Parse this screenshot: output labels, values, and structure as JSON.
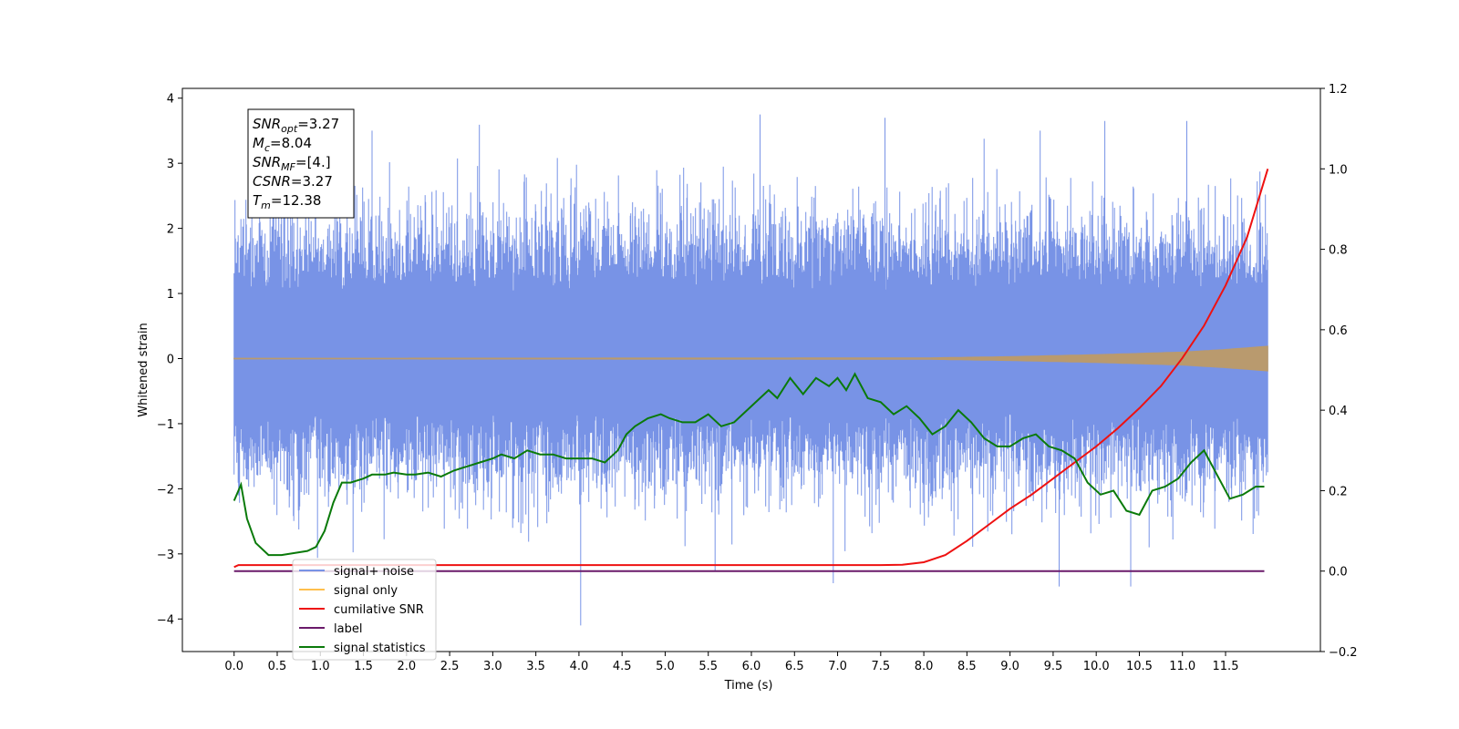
{
  "chart_data": {
    "type": "line",
    "xlabel": "Time (s)",
    "ylabel": "Whitened strain",
    "ylabel_right": "",
    "xlim": [
      -0.6,
      12.6
    ],
    "ylim": [
      -4.5,
      4.15
    ],
    "ylim_right": [
      -0.2,
      1.2
    ],
    "x_ticks": [
      0.0,
      0.5,
      1.0,
      1.5,
      2.0,
      2.5,
      3.0,
      3.5,
      4.0,
      4.5,
      5.0,
      5.5,
      6.0,
      6.5,
      7.0,
      7.5,
      8.0,
      8.5,
      9.0,
      9.5,
      10.0,
      10.5,
      11.0,
      11.5
    ],
    "x_tick_labels": [
      "0.0",
      "0.5",
      "1.0",
      "1.5",
      "2.0",
      "2.5",
      "3.0",
      "3.5",
      "4.0",
      "4.5",
      "5.0",
      "5.5",
      "6.0",
      "6.5",
      "7.0",
      "7.5",
      "8.0",
      "8.5",
      "9.0",
      "9.5",
      "10.0",
      "10.5",
      "11.0",
      "11.5"
    ],
    "y_ticks": [
      -4,
      -3,
      -2,
      -1,
      0,
      1,
      2,
      3,
      4
    ],
    "y_tick_labels": [
      "−4",
      "−3",
      "−2",
      "−1",
      "0",
      "1",
      "2",
      "3",
      "4"
    ],
    "y_ticks_right": [
      -0.2,
      0.0,
      0.2,
      0.4,
      0.6,
      0.8,
      1.0,
      1.2
    ],
    "y_tick_labels_right": [
      "−0.2",
      "0.0",
      "0.2",
      "0.4",
      "0.6",
      "0.8",
      "1.0",
      "1.2"
    ],
    "grid": false,
    "legend_position": "lower-left",
    "annotation": {
      "lines": [
        {
          "base": "SNR",
          "sub": "opt",
          "value": "=3.27"
        },
        {
          "base": "M",
          "sub": "c",
          "value": "=8.04"
        },
        {
          "base": "SNR",
          "sub": "MF",
          "value": "=[4.]"
        },
        {
          "base": "CSNR",
          "sub": "",
          "value": "=3.27"
        },
        {
          "base": "T",
          "sub": "m",
          "value": "=12.38"
        }
      ]
    },
    "series": [
      {
        "name": "signal+ noise",
        "axis": "left",
        "color": "#7893e6",
        "kind": "noise_band",
        "x_range": [
          0.0,
          11.99
        ],
        "typical_upper": 1.8,
        "typical_lower": -1.6,
        "extreme_max": 3.75,
        "extreme_min": -4.1,
        "spikes": [
          {
            "x": 1.6,
            "y": 3.5
          },
          {
            "x": 6.1,
            "y": 3.75
          },
          {
            "x": 7.55,
            "y": 3.7
          },
          {
            "x": 9.35,
            "y": 3.5
          },
          {
            "x": 10.1,
            "y": 3.65
          },
          {
            "x": 11.05,
            "y": 3.65
          },
          {
            "x": 4.02,
            "y": -4.1
          },
          {
            "x": 9.57,
            "y": -3.5
          },
          {
            "x": 10.4,
            "y": -3.5
          },
          {
            "x": 6.95,
            "y": -3.45
          }
        ]
      },
      {
        "name": "signal only",
        "axis": "left",
        "color": "#ffbf4d",
        "kind": "chirp_envelope",
        "x": [
          0.0,
          8.0,
          9.0,
          10.0,
          10.5,
          11.0,
          11.5,
          11.99
        ],
        "amplitude": [
          0.005,
          0.01,
          0.03,
          0.06,
          0.08,
          0.1,
          0.14,
          0.19
        ]
      },
      {
        "name": "cumilative SNR",
        "axis": "right",
        "color": "#ee1111",
        "x": [
          0.0,
          0.05,
          7.5,
          7.75,
          8.0,
          8.25,
          8.5,
          8.75,
          9.0,
          9.25,
          9.5,
          9.75,
          10.0,
          10.25,
          10.5,
          10.75,
          11.0,
          11.25,
          11.5,
          11.75,
          11.99
        ],
        "values": [
          0.01,
          0.015,
          0.015,
          0.016,
          0.022,
          0.04,
          0.075,
          0.115,
          0.155,
          0.19,
          0.23,
          0.27,
          0.31,
          0.355,
          0.405,
          0.46,
          0.53,
          0.61,
          0.71,
          0.83,
          1.0
        ]
      },
      {
        "name": "label",
        "axis": "right",
        "color": "#6a1a6a",
        "x": [
          0.0,
          11.95
        ],
        "values": [
          0.0,
          0.0
        ]
      },
      {
        "name": "signal statistics",
        "axis": "right",
        "color": "#0a7a0a",
        "x": [
          0.0,
          0.08,
          0.15,
          0.25,
          0.4,
          0.55,
          0.7,
          0.85,
          0.95,
          1.05,
          1.15,
          1.25,
          1.35,
          1.5,
          1.6,
          1.75,
          1.85,
          2.0,
          2.1,
          2.25,
          2.4,
          2.55,
          2.7,
          2.85,
          3.0,
          3.1,
          3.25,
          3.4,
          3.55,
          3.7,
          3.85,
          4.0,
          4.15,
          4.3,
          4.45,
          4.55,
          4.65,
          4.8,
          4.95,
          5.05,
          5.2,
          5.35,
          5.5,
          5.65,
          5.8,
          5.95,
          6.1,
          6.2,
          6.3,
          6.45,
          6.6,
          6.75,
          6.9,
          7.0,
          7.1,
          7.2,
          7.35,
          7.5,
          7.65,
          7.8,
          7.95,
          8.1,
          8.25,
          8.4,
          8.55,
          8.7,
          8.85,
          9.0,
          9.15,
          9.3,
          9.45,
          9.6,
          9.75,
          9.9,
          10.05,
          10.2,
          10.35,
          10.5,
          10.65,
          10.8,
          10.95,
          11.1,
          11.25,
          11.4,
          11.55,
          11.7,
          11.85,
          11.95
        ],
        "values": [
          0.175,
          0.215,
          0.13,
          0.07,
          0.04,
          0.04,
          0.045,
          0.05,
          0.06,
          0.1,
          0.17,
          0.22,
          0.22,
          0.23,
          0.24,
          0.24,
          0.245,
          0.24,
          0.24,
          0.245,
          0.235,
          0.25,
          0.26,
          0.27,
          0.28,
          0.29,
          0.28,
          0.3,
          0.29,
          0.29,
          0.28,
          0.28,
          0.28,
          0.27,
          0.3,
          0.34,
          0.36,
          0.38,
          0.39,
          0.38,
          0.37,
          0.37,
          0.39,
          0.36,
          0.37,
          0.4,
          0.43,
          0.45,
          0.43,
          0.48,
          0.44,
          0.48,
          0.46,
          0.48,
          0.45,
          0.49,
          0.43,
          0.42,
          0.39,
          0.41,
          0.38,
          0.34,
          0.36,
          0.4,
          0.37,
          0.33,
          0.31,
          0.31,
          0.33,
          0.34,
          0.31,
          0.3,
          0.28,
          0.22,
          0.19,
          0.2,
          0.15,
          0.14,
          0.2,
          0.21,
          0.23,
          0.27,
          0.3,
          0.24,
          0.18,
          0.19,
          0.21,
          0.21
        ]
      }
    ],
    "legend": [
      {
        "label": "signal+ noise",
        "color": "#7893e6"
      },
      {
        "label": "signal only",
        "color": "#ffbf4d"
      },
      {
        "label": "cumilative SNR",
        "color": "#ee1111"
      },
      {
        "label": "label",
        "color": "#6a1a6a"
      },
      {
        "label": "signal statistics",
        "color": "#0a7a0a"
      }
    ]
  }
}
